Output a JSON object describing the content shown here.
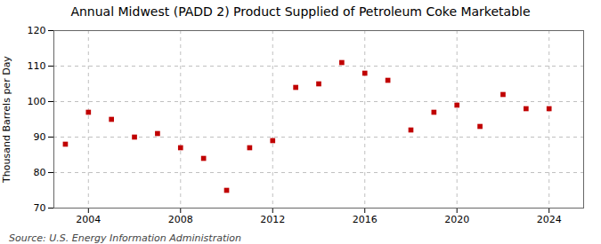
{
  "chart_data": {
    "type": "scatter",
    "title": "Annual Midwest (PADD 2) Product Supplied of Petroleum Coke Marketable",
    "ylabel": "Thousand Barrels per Day",
    "source": "Source: U.S. Energy Information Administration",
    "x": [
      2003,
      2004,
      2005,
      2006,
      2007,
      2008,
      2009,
      2010,
      2011,
      2012,
      2013,
      2014,
      2015,
      2016,
      2017,
      2018,
      2019,
      2020,
      2021,
      2022,
      2023,
      2024
    ],
    "values": [
      88,
      97,
      95,
      90,
      91,
      87,
      84,
      75,
      87,
      89,
      104,
      105,
      111,
      108,
      106,
      92,
      97,
      99,
      93,
      102,
      98,
      98
    ],
    "color": "#c00000",
    "marker": "square",
    "xlim": [
      2002.5,
      2025.5
    ],
    "xticks": [
      2004,
      2008,
      2012,
      2016,
      2020,
      2024
    ],
    "ylim": [
      70,
      120
    ],
    "yticks": [
      70,
      80,
      90,
      100,
      110,
      120
    ],
    "grid": true
  }
}
